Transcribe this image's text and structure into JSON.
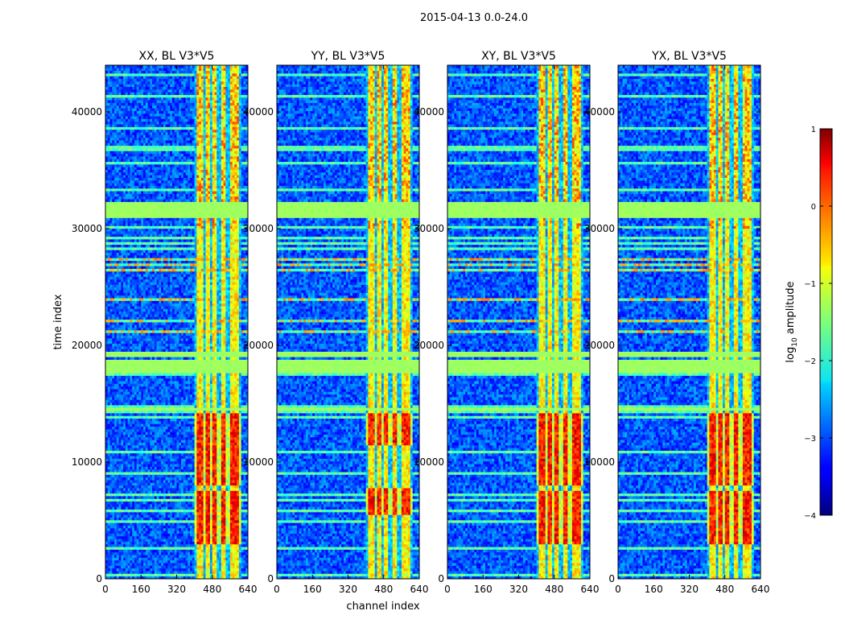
{
  "figure": {
    "suptitle": "2015-04-13 0.0-24.0",
    "xlabel": "channel index",
    "ylabel": "time index"
  },
  "chart_data": {
    "type": "heatmap",
    "title": "2015-04-13 0.0-24.0",
    "xlabel": "channel index",
    "ylabel": "time index",
    "xlim": [
      0,
      640
    ],
    "ylim": [
      0,
      44000
    ],
    "xticks": [
      0,
      160,
      320,
      480,
      640
    ],
    "yticks": [
      0,
      10000,
      20000,
      30000,
      40000
    ],
    "panels": [
      {
        "title": "XX, BL V3*V5",
        "strong_bands": [
          [
            3000,
            7500
          ],
          [
            8000,
            14200
          ]
        ]
      },
      {
        "title": "YY, BL V3*V5",
        "strong_bands": [
          [
            5500,
            7800
          ],
          [
            11500,
            14200
          ]
        ]
      },
      {
        "title": "XY, BL V3*V5",
        "strong_bands": [
          [
            3000,
            7500
          ],
          [
            8000,
            14200
          ]
        ]
      },
      {
        "title": "YX, BL V3*V5",
        "strong_bands": [
          [
            3000,
            7500
          ],
          [
            8000,
            14200
          ]
        ]
      }
    ],
    "flagged_rows": [
      [
        14400,
        14700
      ],
      [
        17700,
        18800
      ],
      [
        19000,
        19400
      ],
      [
        30900,
        32200
      ]
    ],
    "bright_columns": [
      [
        412,
        438
      ],
      [
        448,
        472
      ],
      [
        484,
        504
      ],
      [
        518,
        540
      ],
      [
        556,
        576
      ],
      [
        584,
        604
      ]
    ],
    "colorbar": {
      "label": "log10 amplitude",
      "label_main": "log",
      "label_sub": "10",
      "label_rest": " amplitude",
      "range": [
        -4,
        1
      ],
      "ticks": [
        1,
        0,
        -1,
        -2,
        -3,
        -4
      ],
      "tick_labels": [
        "1",
        "0",
        "−1",
        "−2",
        "−3",
        "−4"
      ],
      "colormap": "jet"
    }
  }
}
